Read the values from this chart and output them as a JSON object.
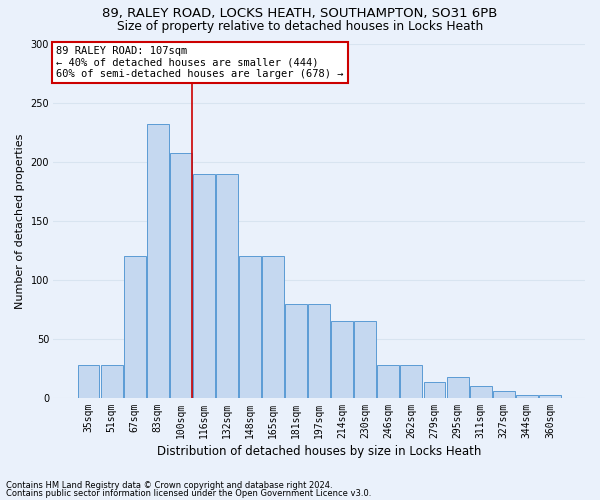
{
  "title_line1": "89, RALEY ROAD, LOCKS HEATH, SOUTHAMPTON, SO31 6PB",
  "title_line2": "Size of property relative to detached houses in Locks Heath",
  "xlabel": "Distribution of detached houses by size in Locks Heath",
  "ylabel": "Number of detached properties",
  "categories": [
    "35sqm",
    "51sqm",
    "67sqm",
    "83sqm",
    "100sqm",
    "116sqm",
    "132sqm",
    "148sqm",
    "165sqm",
    "181sqm",
    "197sqm",
    "214sqm",
    "230sqm",
    "246sqm",
    "262sqm",
    "279sqm",
    "295sqm",
    "311sqm",
    "327sqm",
    "344sqm",
    "360sqm"
  ],
  "bar_heights": [
    28,
    28,
    120,
    232,
    208,
    190,
    190,
    120,
    120,
    80,
    80,
    65,
    65,
    28,
    28,
    14,
    18,
    10,
    6,
    3,
    3
  ],
  "bar_color": "#c5d8f0",
  "bar_edge_color": "#5b9bd5",
  "annotation_line1": "89 RALEY ROAD: 107sqm",
  "annotation_line2": "← 40% of detached houses are smaller (444)",
  "annotation_line3": "60% of semi-detached houses are larger (678) →",
  "annotation_box_facecolor": "#ffffff",
  "annotation_box_edgecolor": "#cc0000",
  "vline_color": "#cc0000",
  "vline_x_idx": 4.5,
  "ylim": [
    0,
    300
  ],
  "yticks": [
    0,
    50,
    100,
    150,
    200,
    250,
    300
  ],
  "footer_line1": "Contains HM Land Registry data © Crown copyright and database right 2024.",
  "footer_line2": "Contains public sector information licensed under the Open Government Licence v3.0.",
  "background_color": "#eaf1fb",
  "grid_color": "#d8e4f0",
  "title_fontsize": 9.5,
  "subtitle_fontsize": 8.8,
  "tick_fontsize": 7,
  "ylabel_fontsize": 8,
  "xlabel_fontsize": 8.5,
  "annotation_fontsize": 7.5,
  "footer_fontsize": 6
}
